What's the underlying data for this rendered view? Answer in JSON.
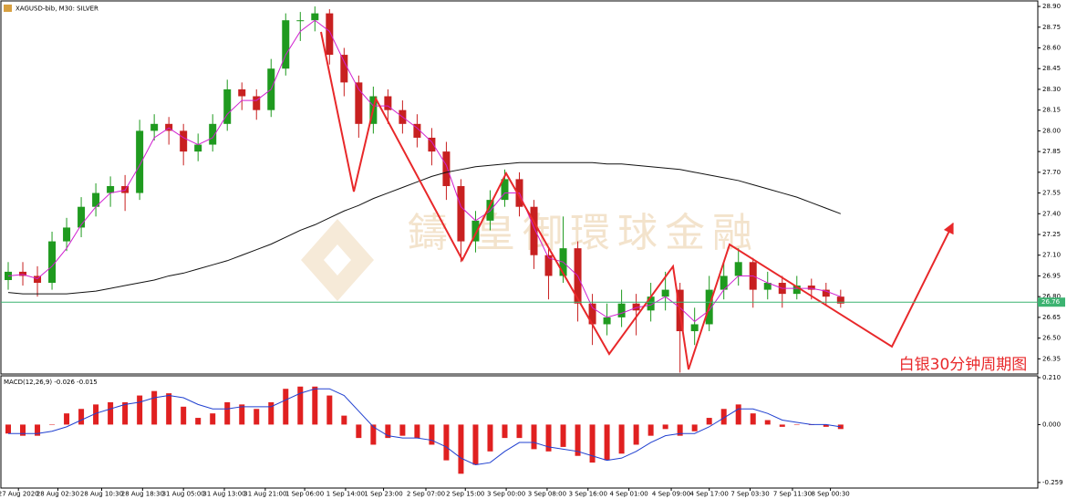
{
  "chart_data": [
    {
      "type": "candlestick",
      "title": "XAGUSD-bib, M30: SILVER",
      "annotation": "白银30分钟周期图",
      "watermark": "鑄 皇御環球金融",
      "xlim": [
        0,
        71
      ],
      "xticks": [
        {
          "value": 1.2,
          "label": "27 Aug 2020"
        },
        {
          "value": 3.9,
          "label": "28 Aug 02:30"
        },
        {
          "value": 6.9,
          "label": "28 Aug 10:30"
        },
        {
          "value": 9.7,
          "label": "28 Aug 18:30"
        },
        {
          "value": 12.5,
          "label": "31 Aug 05:00"
        },
        {
          "value": 15.3,
          "label": "31 Aug 13:00"
        },
        {
          "value": 18.1,
          "label": "31 Aug 21:00"
        },
        {
          "value": 20.8,
          "label": "1 Sep 06:00"
        },
        {
          "value": 23.6,
          "label": "1 Sep 14:00"
        },
        {
          "value": 26.2,
          "label": "1 Sep 23:00"
        },
        {
          "value": 29.1,
          "label": "2 Sep 07:00"
        },
        {
          "value": 31.8,
          "label": "2 Sep 15:00"
        },
        {
          "value": 34.6,
          "label": "3 Sep 00:00"
        },
        {
          "value": 37.4,
          "label": "3 Sep 08:00"
        },
        {
          "value": 40.2,
          "label": "3 Sep 16:00"
        },
        {
          "value": 43.0,
          "label": "4 Sep 01:00"
        },
        {
          "value": 45.9,
          "label": "4 Sep 09:00"
        },
        {
          "value": 48.5,
          "label": "4 Sep 17:00"
        },
        {
          "value": 51.3,
          "label": "7 Sep 03:30"
        },
        {
          "value": 54.2,
          "label": "7 Sep 11:30"
        },
        {
          "value": 56.8,
          "label": "8 Sep 00:30"
        }
      ],
      "ylim": [
        26.24,
        28.94
      ],
      "yticks": [
        {
          "value": 28.9,
          "label": "28.90"
        },
        28.75,
        {
          "value": 28.6,
          "label": "28.60"
        },
        28.45,
        {
          "value": 28.3,
          "label": "28.30"
        },
        28.15,
        {
          "value": 28.0,
          "label": "28.00"
        },
        27.85,
        {
          "value": 27.7,
          "label": "27.70"
        },
        27.55,
        {
          "value": 27.4,
          "label": "27.40"
        },
        27.25,
        {
          "value": 27.1,
          "label": "27.10"
        },
        26.95,
        {
          "value": 26.8,
          "label": "26.80"
        },
        26.65,
        {
          "value": 26.5,
          "label": "26.50"
        },
        26.35
      ],
      "up_color": "#1f9a1f",
      "down_color": "#c82020",
      "last_price": 26.76,
      "last_price_color": "#3cb371",
      "ohlc": [
        [
          26.92,
          27.05,
          26.85,
          26.98
        ],
        [
          26.98,
          27.05,
          26.88,
          26.95
        ],
        [
          26.95,
          27.02,
          26.8,
          26.9
        ],
        [
          26.9,
          27.27,
          26.85,
          27.2
        ],
        [
          27.2,
          27.37,
          27.13,
          27.3
        ],
        [
          27.3,
          27.52,
          27.23,
          27.45
        ],
        [
          27.45,
          27.62,
          27.38,
          27.55
        ],
        [
          27.55,
          27.67,
          27.45,
          27.6
        ],
        [
          27.6,
          27.68,
          27.42,
          27.55
        ],
        [
          27.55,
          28.08,
          27.5,
          28.0
        ],
        [
          28.0,
          28.12,
          27.93,
          28.05
        ],
        [
          28.05,
          28.1,
          27.9,
          28.0
        ],
        [
          28.0,
          28.05,
          27.75,
          27.85
        ],
        [
          27.85,
          27.98,
          27.78,
          27.9
        ],
        [
          27.9,
          28.12,
          27.85,
          28.05
        ],
        [
          28.05,
          28.37,
          28.0,
          28.3
        ],
        [
          28.3,
          28.35,
          28.15,
          28.25
        ],
        [
          28.25,
          28.3,
          28.08,
          28.15
        ],
        [
          28.15,
          28.52,
          28.1,
          28.45
        ],
        [
          28.45,
          28.85,
          28.4,
          28.8
        ],
        [
          28.8,
          28.86,
          28.65,
          28.8
        ],
        [
          28.8,
          28.9,
          28.72,
          28.85
        ],
        [
          28.85,
          28.88,
          28.48,
          28.55
        ],
        [
          28.55,
          28.6,
          28.25,
          28.35
        ],
        [
          28.35,
          28.4,
          27.95,
          28.05
        ],
        [
          28.05,
          28.32,
          27.98,
          28.25
        ],
        [
          28.25,
          28.3,
          28.05,
          28.15
        ],
        [
          28.15,
          28.22,
          27.98,
          28.05
        ],
        [
          28.05,
          28.12,
          27.88,
          27.95
        ],
        [
          27.95,
          28.02,
          27.75,
          27.85
        ],
        [
          27.85,
          27.92,
          27.5,
          27.6
        ],
        [
          27.6,
          27.65,
          27.05,
          27.2
        ],
        [
          27.2,
          27.42,
          27.12,
          27.35
        ],
        [
          27.35,
          27.57,
          27.28,
          27.5
        ],
        [
          27.5,
          27.72,
          27.45,
          27.65
        ],
        [
          27.65,
          27.7,
          27.38,
          27.45
        ],
        [
          27.45,
          27.5,
          27.0,
          27.1
        ],
        [
          27.1,
          27.15,
          26.78,
          26.95
        ],
        [
          26.95,
          27.38,
          26.9,
          27.15
        ],
        [
          27.15,
          27.2,
          26.62,
          26.75
        ],
        [
          26.75,
          26.82,
          26.45,
          26.6
        ],
        [
          26.6,
          26.75,
          26.52,
          26.65
        ],
        [
          26.65,
          26.85,
          26.58,
          26.75
        ],
        [
          26.75,
          26.82,
          26.52,
          26.7
        ],
        [
          26.7,
          26.9,
          26.62,
          26.8
        ],
        [
          26.8,
          26.98,
          26.7,
          26.85
        ],
        [
          26.85,
          26.9,
          26.25,
          26.55
        ],
        [
          26.55,
          26.72,
          26.45,
          26.6
        ],
        [
          26.6,
          26.95,
          26.55,
          26.85
        ],
        [
          26.85,
          27.05,
          26.78,
          26.95
        ],
        [
          26.95,
          27.15,
          26.88,
          27.05
        ],
        [
          27.05,
          27.08,
          26.72,
          26.85
        ],
        [
          26.85,
          26.98,
          26.78,
          26.9
        ],
        [
          26.9,
          26.95,
          26.72,
          26.82
        ],
        [
          26.82,
          26.95,
          26.78,
          26.88
        ],
        [
          26.88,
          26.93,
          26.78,
          26.85
        ],
        [
          26.85,
          26.9,
          26.74,
          26.8
        ],
        [
          26.8,
          26.85,
          26.72,
          26.75
        ]
      ],
      "series": [
        {
          "color": "#d020d0",
          "values": [
            26.95,
            26.96,
            26.93,
            27.02,
            27.15,
            27.32,
            27.45,
            27.55,
            27.57,
            27.75,
            27.95,
            28.02,
            27.95,
            27.9,
            27.95,
            28.12,
            28.22,
            28.22,
            28.3,
            28.55,
            28.72,
            28.8,
            28.72,
            28.5,
            28.3,
            28.18,
            28.18,
            28.1,
            28.02,
            27.92,
            27.75,
            27.45,
            27.35,
            27.42,
            27.55,
            27.55,
            27.3,
            27.08,
            27.05,
            26.95,
            26.72,
            26.65,
            26.68,
            26.72,
            26.74,
            26.8,
            26.72,
            26.62,
            26.7,
            26.85,
            26.95,
            26.95,
            26.9,
            26.86,
            26.86,
            26.86,
            26.84,
            26.8
          ]
        },
        {
          "color": "#111111",
          "values": [
            26.83,
            26.82,
            26.82,
            26.82,
            26.82,
            26.83,
            26.84,
            26.86,
            26.88,
            26.9,
            26.92,
            26.95,
            26.97,
            27.0,
            27.03,
            27.06,
            27.1,
            27.14,
            27.18,
            27.23,
            27.28,
            27.32,
            27.37,
            27.42,
            27.46,
            27.51,
            27.55,
            27.59,
            27.63,
            27.67,
            27.7,
            27.72,
            27.74,
            27.75,
            27.76,
            27.77,
            27.77,
            27.77,
            27.77,
            27.77,
            27.77,
            27.76,
            27.76,
            27.75,
            27.74,
            27.73,
            27.72,
            27.7,
            27.68,
            27.66,
            27.64,
            27.61,
            27.58,
            27.55,
            27.52,
            27.48,
            27.44,
            27.4
          ]
        }
      ]
    },
    {
      "type": "macd",
      "title": "MACD(12,26,9) -0.026 -0.015",
      "ylim": [
        -0.284,
        0.218
      ],
      "yticks": [
        {
          "value": 0.21,
          "label": "0.210"
        },
        {
          "value": 0,
          "label": "0.000"
        },
        -0.259
      ],
      "series": [
        {
          "style": "histogram",
          "color": "#e02020",
          "values": [
            -0.04,
            -0.05,
            -0.05,
            0,
            0.05,
            0.07,
            0.09,
            0.1,
            0.1,
            0.13,
            0.15,
            0.14,
            0.08,
            0.03,
            0.05,
            0.1,
            0.09,
            0.07,
            0.1,
            0.16,
            0.17,
            0.17,
            0.13,
            0.04,
            -0.06,
            -0.09,
            -0.06,
            -0.05,
            -0.06,
            -0.09,
            -0.16,
            -0.22,
            -0.18,
            -0.12,
            -0.06,
            -0.06,
            -0.11,
            -0.12,
            -0.1,
            -0.14,
            -0.17,
            -0.16,
            -0.13,
            -0.09,
            -0.05,
            -0.02,
            -0.05,
            -0.03,
            0.03,
            0.07,
            0.09,
            0.05,
            0.02,
            -0.01,
            0,
            0,
            -0.01,
            -0.02
          ]
        },
        {
          "style": "line",
          "color": "#2040d0",
          "values": [
            -0.04,
            -0.04,
            -0.04,
            -0.03,
            -0.01,
            0.02,
            0.05,
            0.07,
            0.09,
            0.1,
            0.12,
            0.13,
            0.12,
            0.09,
            0.07,
            0.07,
            0.08,
            0.08,
            0.08,
            0.11,
            0.14,
            0.16,
            0.16,
            0.13,
            0.06,
            -0.01,
            -0.05,
            -0.06,
            -0.06,
            -0.07,
            -0.1,
            -0.15,
            -0.18,
            -0.17,
            -0.12,
            -0.08,
            -0.08,
            -0.1,
            -0.11,
            -0.12,
            -0.14,
            -0.16,
            -0.15,
            -0.12,
            -0.08,
            -0.05,
            -0.04,
            -0.04,
            -0.01,
            0.03,
            0.07,
            0.07,
            0.05,
            0.02,
            0.01,
            0,
            0,
            -0.01
          ]
        }
      ]
    }
  ]
}
